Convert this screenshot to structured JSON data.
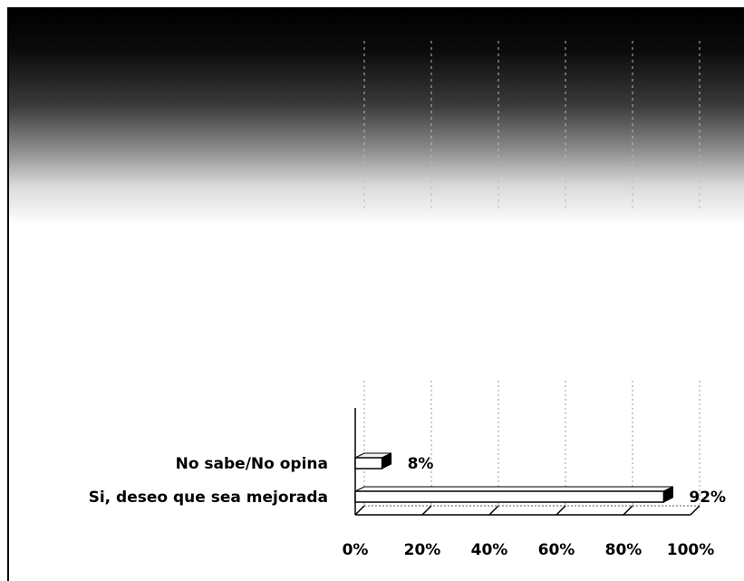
{
  "chart_data": {
    "type": "bar",
    "orientation": "horizontal",
    "categories": [
      "No sabe/No opina",
      "Si, deseo que sea mejorada"
    ],
    "values": [
      8,
      92
    ],
    "data_labels": [
      "8%",
      "92%"
    ],
    "x_ticks": [
      "0%",
      "20%",
      "40%",
      "60%",
      "80%",
      "100%"
    ],
    "xlim": [
      0,
      100
    ],
    "grid": true,
    "style": "3d",
    "colors": {
      "bar_fill": "#ffffff",
      "bar_stroke": "#000000",
      "grid": "#999999",
      "background": "#ffffff"
    }
  }
}
